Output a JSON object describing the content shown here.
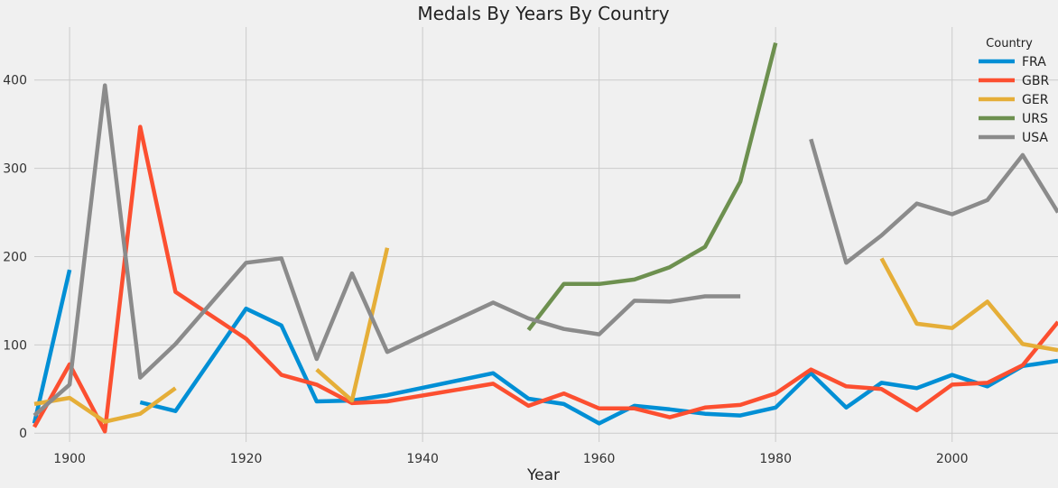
{
  "chart_data": {
    "type": "line",
    "title": "Medals By Years By Country",
    "xlabel": "Year",
    "ylabel": "",
    "xlim": [
      1896,
      2012
    ],
    "ylim": [
      -10,
      460
    ],
    "xticks": [
      1900,
      1920,
      1940,
      1960,
      1980,
      2000
    ],
    "yticks": [
      0,
      100,
      200,
      300,
      400
    ],
    "grid": true,
    "legend": {
      "title": "Country",
      "placement": "top-right"
    },
    "series": [
      {
        "name": "FRA",
        "color": "#008fd5",
        "points": [
          [
            1896,
            11
          ],
          [
            1900,
            185
          ],
          null,
          [
            1908,
            35
          ],
          [
            1912,
            25
          ],
          [
            1920,
            141
          ],
          [
            1924,
            122
          ],
          [
            1928,
            36
          ],
          [
            1932,
            37
          ],
          [
            1936,
            43
          ],
          [
            1948,
            68
          ],
          [
            1952,
            39
          ],
          [
            1956,
            33
          ],
          [
            1960,
            11
          ],
          [
            1964,
            31
          ],
          [
            1968,
            27
          ],
          [
            1972,
            22
          ],
          [
            1976,
            20
          ],
          [
            1980,
            29
          ],
          [
            1984,
            68
          ],
          [
            1988,
            29
          ],
          [
            1992,
            57
          ],
          [
            1996,
            51
          ],
          [
            2000,
            66
          ],
          [
            2004,
            53
          ],
          [
            2008,
            76
          ],
          [
            2012,
            82
          ]
        ]
      },
      {
        "name": "GBR",
        "color": "#fc4f30",
        "points": [
          [
            1896,
            7
          ],
          [
            1900,
            78
          ],
          [
            1904,
            2
          ],
          [
            1908,
            347
          ],
          [
            1912,
            160
          ],
          [
            1920,
            107
          ],
          [
            1924,
            66
          ],
          [
            1928,
            55
          ],
          [
            1932,
            34
          ],
          [
            1936,
            36
          ],
          [
            1948,
            56
          ],
          [
            1952,
            31
          ],
          [
            1956,
            45
          ],
          [
            1960,
            28
          ],
          [
            1964,
            28
          ],
          [
            1968,
            18
          ],
          [
            1972,
            29
          ],
          [
            1976,
            32
          ],
          [
            1980,
            45
          ],
          [
            1984,
            72
          ],
          [
            1988,
            53
          ],
          [
            1992,
            50
          ],
          [
            1996,
            26
          ],
          [
            2000,
            55
          ],
          [
            2004,
            57
          ],
          [
            2008,
            77
          ],
          [
            2012,
            126
          ]
        ]
      },
      {
        "name": "GER",
        "color": "#e5ae38",
        "points": [
          [
            1896,
            33
          ],
          [
            1900,
            40
          ],
          [
            1904,
            13
          ],
          [
            1908,
            22
          ],
          [
            1912,
            51
          ],
          null,
          [
            1928,
            72
          ],
          [
            1932,
            37
          ],
          [
            1936,
            210
          ],
          null,
          [
            1992,
            198
          ],
          [
            1996,
            124
          ],
          [
            2000,
            119
          ],
          [
            2004,
            149
          ],
          [
            2008,
            101
          ],
          [
            2012,
            94
          ]
        ]
      },
      {
        "name": "URS",
        "color": "#6d904f",
        "points": [
          [
            1952,
            117
          ],
          [
            1956,
            169
          ],
          [
            1960,
            169
          ],
          [
            1964,
            174
          ],
          [
            1968,
            188
          ],
          [
            1972,
            211
          ],
          [
            1976,
            285
          ],
          [
            1980,
            442
          ]
        ]
      },
      {
        "name": "USA",
        "color": "#8b8b8b",
        "points": [
          [
            1896,
            20
          ],
          [
            1900,
            55
          ],
          [
            1904,
            394
          ],
          [
            1908,
            63
          ],
          [
            1912,
            101
          ],
          [
            1920,
            193
          ],
          [
            1924,
            198
          ],
          [
            1928,
            84
          ],
          [
            1932,
            181
          ],
          [
            1936,
            92
          ],
          [
            1948,
            148
          ],
          [
            1952,
            130
          ],
          [
            1956,
            118
          ],
          [
            1960,
            112
          ],
          [
            1964,
            150
          ],
          [
            1968,
            149
          ],
          [
            1972,
            155
          ],
          [
            1976,
            155
          ],
          null,
          [
            1984,
            333
          ],
          [
            1988,
            193
          ],
          [
            1992,
            224
          ],
          [
            1996,
            260
          ],
          [
            2000,
            248
          ],
          [
            2004,
            264
          ],
          [
            2008,
            315
          ],
          [
            2012,
            250
          ]
        ]
      }
    ]
  }
}
